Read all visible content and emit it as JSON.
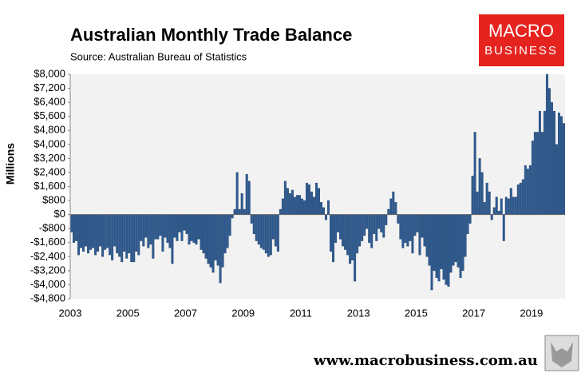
{
  "chart_data": {
    "type": "bar",
    "title": "Australian Monthly Trade Balance",
    "subtitle": "Source: Australian Bureau of Statistics",
    "y_label": "Millions",
    "color": "#2e5b92",
    "grid": false,
    "ylim": [
      -4800,
      8000
    ],
    "yticks": [
      {
        "value": -4800,
        "label": "-$4,800"
      },
      {
        "value": -4000,
        "label": "-$4,000"
      },
      {
        "value": -3200,
        "label": "-$3,200"
      },
      {
        "value": -2400,
        "label": "-$2,400"
      },
      {
        "value": -1600,
        "label": "-$1,600"
      },
      {
        "value": -800,
        "label": "-$800"
      },
      {
        "value": 0,
        "label": "$0"
      },
      {
        "value": 800,
        "label": "$800"
      },
      {
        "value": 1600,
        "label": "$1,600"
      },
      {
        "value": 2400,
        "label": "$2,400"
      },
      {
        "value": 3200,
        "label": "$3,200"
      },
      {
        "value": 4000,
        "label": "$4,000"
      },
      {
        "value": 4800,
        "label": "$4,800"
      },
      {
        "value": 5600,
        "label": "$5,600"
      },
      {
        "value": 6400,
        "label": "$6,400"
      },
      {
        "value": 7200,
        "label": "$7,200"
      },
      {
        "value": 8000,
        "label": "$8,000"
      }
    ],
    "categories": [
      "2003",
      null,
      null,
      null,
      null,
      null,
      null,
      null,
      null,
      null,
      null,
      null,
      null,
      null,
      null,
      null,
      null,
      null,
      null,
      null,
      null,
      null,
      null,
      null,
      "2005",
      null,
      null,
      null,
      null,
      null,
      null,
      null,
      null,
      null,
      null,
      null,
      null,
      null,
      null,
      null,
      null,
      null,
      null,
      null,
      null,
      null,
      null,
      null,
      "2007",
      null,
      null,
      null,
      null,
      null,
      null,
      null,
      null,
      null,
      null,
      null,
      null,
      null,
      null,
      null,
      null,
      null,
      null,
      null,
      null,
      null,
      null,
      null,
      "2009",
      null,
      null,
      null,
      null,
      null,
      null,
      null,
      null,
      null,
      null,
      null,
      null,
      null,
      null,
      null,
      null,
      null,
      null,
      null,
      null,
      null,
      null,
      null,
      "2011",
      null,
      null,
      null,
      null,
      null,
      null,
      null,
      null,
      null,
      null,
      null,
      null,
      null,
      null,
      null,
      null,
      null,
      null,
      null,
      null,
      null,
      null,
      null,
      "2013",
      null,
      null,
      null,
      null,
      null,
      null,
      null,
      null,
      null,
      null,
      null,
      null,
      null,
      null,
      null,
      null,
      null,
      null,
      null,
      null,
      null,
      null,
      null,
      "2015",
      null,
      null,
      null,
      null,
      null,
      null,
      null,
      null,
      null,
      null,
      null,
      null,
      null,
      null,
      null,
      null,
      null,
      null,
      null,
      null,
      null,
      null,
      null,
      "2017",
      null,
      null,
      null,
      null,
      null,
      null,
      null,
      null,
      null,
      null,
      null,
      null,
      null,
      null,
      null,
      null,
      null,
      null,
      null,
      null,
      null,
      null,
      null,
      "2019",
      null,
      null,
      null,
      null,
      null,
      null,
      null,
      null,
      null,
      null,
      null,
      null,
      null
    ],
    "values": [
      -1000,
      -1600,
      -1500,
      -2300,
      -1900,
      -2100,
      -1800,
      -2200,
      -2000,
      -1900,
      -2300,
      -2100,
      -1800,
      -2400,
      -2000,
      -1900,
      -2300,
      -2600,
      -1800,
      -2200,
      -2400,
      -2700,
      -2100,
      -2500,
      -2200,
      -2700,
      -2700,
      -2100,
      -2300,
      -1500,
      -1800,
      -1300,
      -1900,
      -1700,
      -2500,
      -1400,
      -1400,
      -1200,
      -2100,
      -1300,
      -1600,
      -1900,
      -2800,
      -1300,
      -1500,
      -1000,
      -1500,
      -900,
      -1100,
      -1700,
      -1500,
      -1600,
      -1700,
      -1400,
      -2000,
      -2200,
      -2500,
      -2800,
      -3000,
      -3300,
      -2600,
      -2900,
      -3900,
      -3000,
      -2200,
      -1900,
      -1200,
      -200,
      300,
      2400,
      300,
      1200,
      300,
      2300,
      1900,
      -500,
      -1100,
      -1500,
      -1700,
      -1900,
      -2000,
      -2200,
      -2400,
      -2300,
      -1400,
      -1800,
      -2100,
      300,
      900,
      1900,
      1500,
      1200,
      1400,
      1000,
      1100,
      1100,
      900,
      800,
      1800,
      1700,
      1300,
      1000,
      1800,
      1500,
      700,
      400,
      -300,
      800,
      -2100,
      -2700,
      -1600,
      -1000,
      -1400,
      -1800,
      -2000,
      -2300,
      -2800,
      -2600,
      -3800,
      -2200,
      -1800,
      -1500,
      -1200,
      -800,
      -1600,
      -1900,
      -1100,
      -1500,
      -800,
      -1000,
      -1300,
      -600,
      300,
      900,
      1300,
      700,
      -500,
      -1400,
      -1900,
      -1600,
      -1800,
      -1500,
      -2200,
      -1200,
      -1000,
      -2300,
      -1300,
      -1800,
      -2400,
      -2900,
      -4300,
      -3200,
      -3600,
      -3800,
      -3100,
      -3700,
      -4000,
      -4100,
      -3300,
      -2900,
      -2700,
      -3000,
      -3600,
      -3200,
      -2400,
      -1100,
      -500,
      2200,
      4700,
      1300,
      3200,
      2400,
      700,
      1800,
      1300,
      -300,
      400,
      1000,
      200,
      900,
      -1500,
      1000,
      900,
      1500,
      1000,
      1000,
      1700,
      1800,
      2000,
      2800,
      2600,
      2800,
      4200,
      4700,
      4700,
      5900,
      4700,
      5900,
      8000,
      7200,
      6400,
      5900,
      4000,
      5800,
      5600,
      5200
    ]
  },
  "logo": {
    "line1": "MACRO",
    "line2": "BUSINESS"
  },
  "website": "www.macrobusiness.com.au"
}
